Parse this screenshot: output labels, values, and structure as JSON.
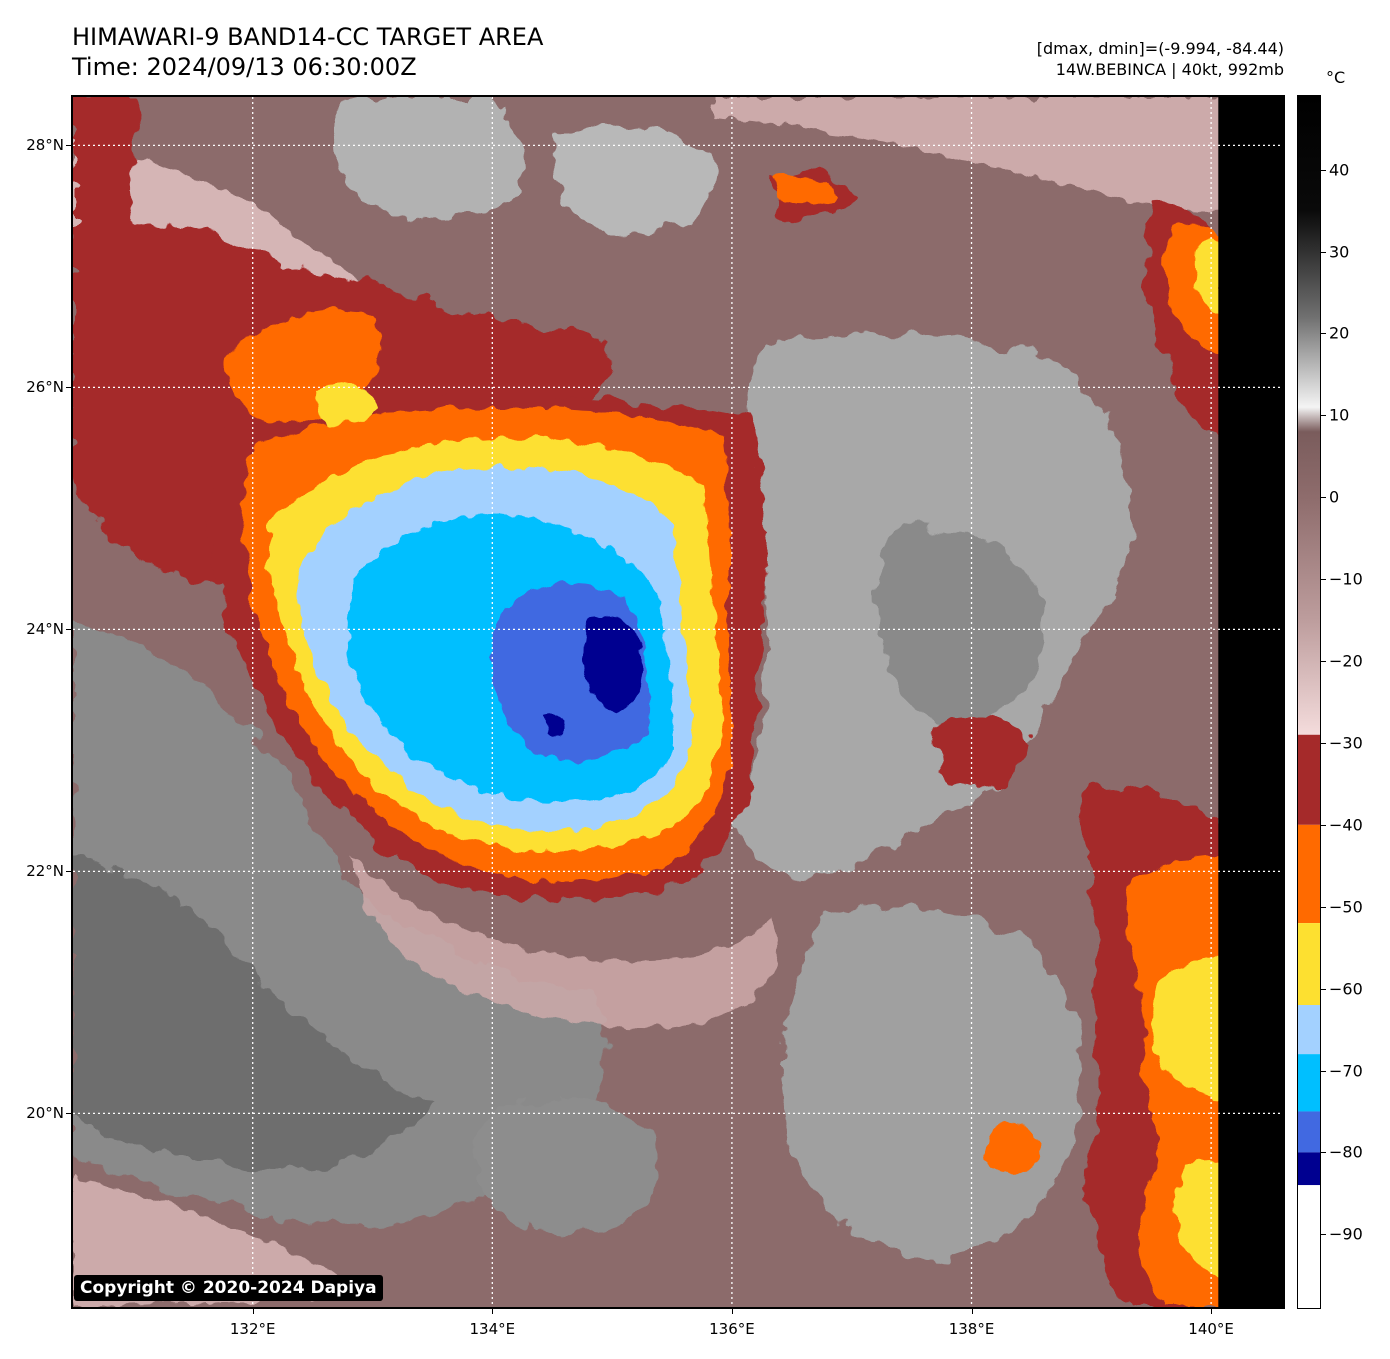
{
  "header": {
    "title_line1": "HIMAWARI-9 BAND14-CC TARGET AREA",
    "title_line2": "Time: 2024/09/13 06:30:00Z",
    "range_text": "[dmax, dmin]=(-9.994, -84.44)",
    "storm_text": "14W.BEBINCA | 40kt, 992mb"
  },
  "map": {
    "lon_range": [
      130.5,
      140.6
    ],
    "lat_range": [
      18.4,
      28.4
    ],
    "lat_ticks": [
      {
        "value": 28,
        "label": "28°N"
      },
      {
        "value": 26,
        "label": "26°N"
      },
      {
        "value": 24,
        "label": "24°N"
      },
      {
        "value": 22,
        "label": "22°N"
      },
      {
        "value": 20,
        "label": "20°N"
      }
    ],
    "lon_ticks": [
      {
        "value": 132,
        "label": "132°E"
      },
      {
        "value": 134,
        "label": "134°E"
      },
      {
        "value": 136,
        "label": "136°E"
      },
      {
        "value": 138,
        "label": "138°E"
      },
      {
        "value": 140,
        "label": "140°E"
      }
    ],
    "data_edge_lon": 140.06,
    "copyright": "Copyright © 2020-2024 Dapiya"
  },
  "colorbar": {
    "unit": "°C",
    "range": [
      -99,
      49
    ],
    "ticks": [
      {
        "value": 40,
        "label": "40"
      },
      {
        "value": 30,
        "label": "30"
      },
      {
        "value": 20,
        "label": "20"
      },
      {
        "value": 10,
        "label": "10"
      },
      {
        "value": 0,
        "label": "0"
      },
      {
        "value": -10,
        "label": "−10"
      },
      {
        "value": -20,
        "label": "−20"
      },
      {
        "value": -30,
        "label": "−30"
      },
      {
        "value": -40,
        "label": "−40"
      },
      {
        "value": -50,
        "label": "−50"
      },
      {
        "value": -60,
        "label": "−60"
      },
      {
        "value": -70,
        "label": "−70"
      },
      {
        "value": -80,
        "label": "−80"
      },
      {
        "value": -90,
        "label": "−90"
      }
    ],
    "gradient_stops": [
      {
        "value": 49,
        "color": "#000000"
      },
      {
        "value": 35,
        "color": "#0a0a0a"
      },
      {
        "value": 22,
        "color": "#707070"
      },
      {
        "value": 11,
        "color": "#f4f4f4"
      },
      {
        "value": 8,
        "color": "#7a5c5c"
      },
      {
        "value": 0,
        "color": "#8e6c6c"
      },
      {
        "value": -15,
        "color": "#bd9d9d"
      },
      {
        "value": -29,
        "color": "#f4dcdc"
      }
    ],
    "bands": [
      {
        "from": -29,
        "to": -40,
        "color": "#a52a2a"
      },
      {
        "from": -40,
        "to": -52,
        "color": "#ff6a00"
      },
      {
        "from": -52,
        "to": -62,
        "color": "#fde030"
      },
      {
        "from": -62,
        "to": -68,
        "color": "#a3d1ff"
      },
      {
        "from": -68,
        "to": -75,
        "color": "#00bfff"
      },
      {
        "from": -75,
        "to": -80,
        "color": "#4169e1"
      },
      {
        "from": -80,
        "to": -84,
        "color": "#000090"
      },
      {
        "from": -84,
        "to": -99,
        "color": "#ffffff"
      }
    ]
  },
  "colors": {
    "brown_warm": "#8c6b6b",
    "pink": "#e8caca",
    "grey_light": "#bdbdbd",
    "grey_dark": "#777777",
    "dark_red": "#a52a2a",
    "orange": "#ff6a00",
    "yellow": "#fde030",
    "light_blue": "#a3d1ff",
    "cyan": "#00bfff",
    "royal_blue": "#4169e1",
    "navy": "#000090"
  }
}
